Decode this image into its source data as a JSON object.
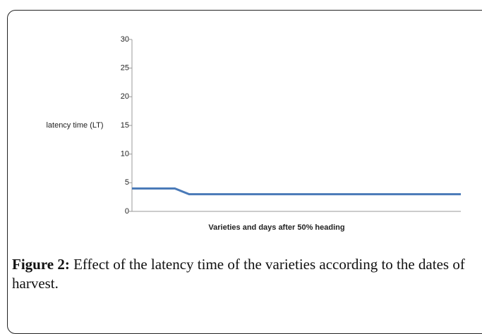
{
  "chart_data": {
    "type": "line",
    "ylabel": "latency time (LT)",
    "xlabel": "Varieties and days after 50% heading",
    "categories": [
      null,
      null,
      null,
      null,
      null,
      null,
      null,
      null,
      null,
      null,
      null,
      null,
      null,
      null,
      null,
      null,
      null,
      null,
      null,
      null,
      null,
      null,
      null,
      null
    ],
    "series": [
      {
        "name": null,
        "color": "#4a7ab8",
        "values": [
          4,
          4,
          4,
          4,
          3,
          3,
          3,
          3,
          3,
          3,
          3,
          3,
          3,
          3,
          3,
          3,
          3,
          3,
          3,
          3,
          3,
          3,
          3,
          3
        ]
      }
    ],
    "ylim": [
      0,
      30
    ],
    "yticks": [
      0,
      5,
      10,
      15,
      20,
      25,
      30
    ]
  },
  "caption": {
    "label": "Figure 2:",
    "text": " Effect of the latency time of the varieties according to the dates of harvest."
  }
}
